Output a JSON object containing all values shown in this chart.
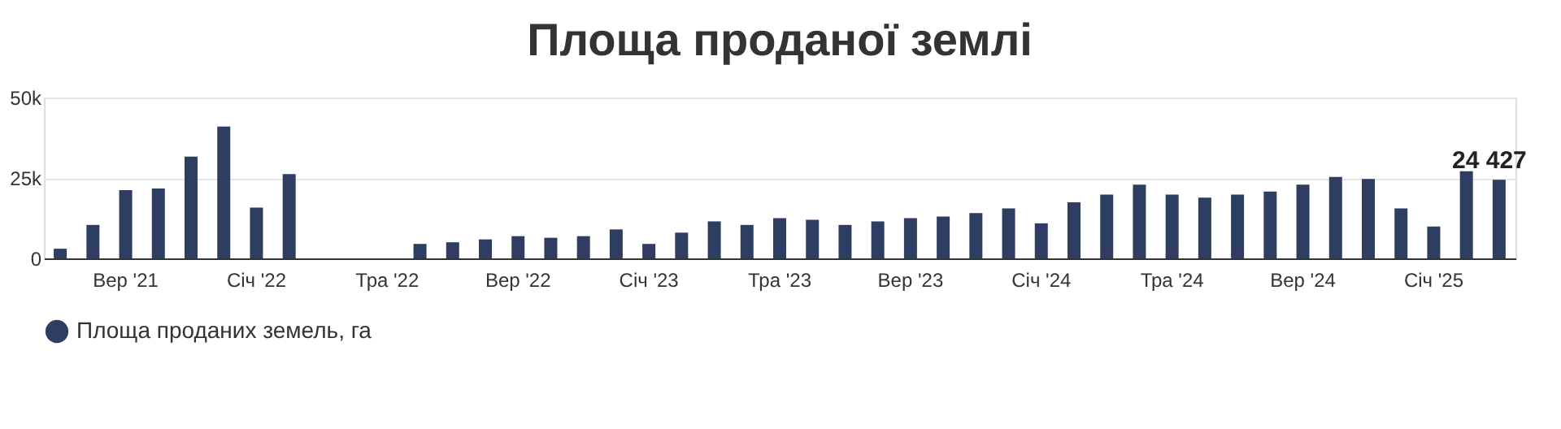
{
  "chart_data": {
    "type": "bar",
    "title": "Площа проданої землі",
    "categories": [
      null,
      null,
      "Вер '21",
      null,
      null,
      null,
      "Січ '22",
      null,
      null,
      null,
      "Тра '22",
      null,
      null,
      null,
      "Вер '22",
      null,
      null,
      null,
      "Січ '23",
      null,
      null,
      null,
      "Тра '23",
      null,
      null,
      null,
      "Вер '23",
      null,
      null,
      null,
      "Січ '24",
      null,
      null,
      null,
      "Тра '24",
      null,
      null,
      null,
      "Вер '24",
      null,
      null,
      null,
      "Січ '25",
      null,
      null
    ],
    "series": [
      {
        "name": "Площа проданих земель, га",
        "color": "#2e3d62",
        "values": [
          3000,
          10400,
          21200,
          21700,
          31600,
          41000,
          15800,
          26200,
          null,
          null,
          null,
          4500,
          5000,
          5900,
          6900,
          6400,
          6900,
          9000,
          4500,
          8000,
          11500,
          10400,
          12500,
          12000,
          10400,
          11500,
          12500,
          13000,
          14100,
          15500,
          10900,
          17400,
          19800,
          22900,
          19800,
          18900,
          19800,
          20800,
          22900,
          25300,
          24700,
          15500,
          9900,
          27100,
          24427
        ],
        "value_labels": [
          null,
          null,
          null,
          null,
          null,
          null,
          null,
          null,
          null,
          null,
          null,
          null,
          null,
          null,
          null,
          null,
          null,
          null,
          null,
          null,
          null,
          null,
          null,
          null,
          null,
          null,
          null,
          null,
          null,
          null,
          null,
          null,
          null,
          null,
          null,
          null,
          null,
          null,
          null,
          null,
          null,
          null,
          null,
          null,
          "24 427"
        ]
      }
    ],
    "ylim": [
      0,
      50000
    ],
    "yticks": [
      {
        "value": 0,
        "label": "0"
      },
      {
        "value": 25000,
        "label": "25k"
      },
      {
        "value": 50000,
        "label": "50k"
      }
    ],
    "grid": "y",
    "legend": "bottom"
  }
}
